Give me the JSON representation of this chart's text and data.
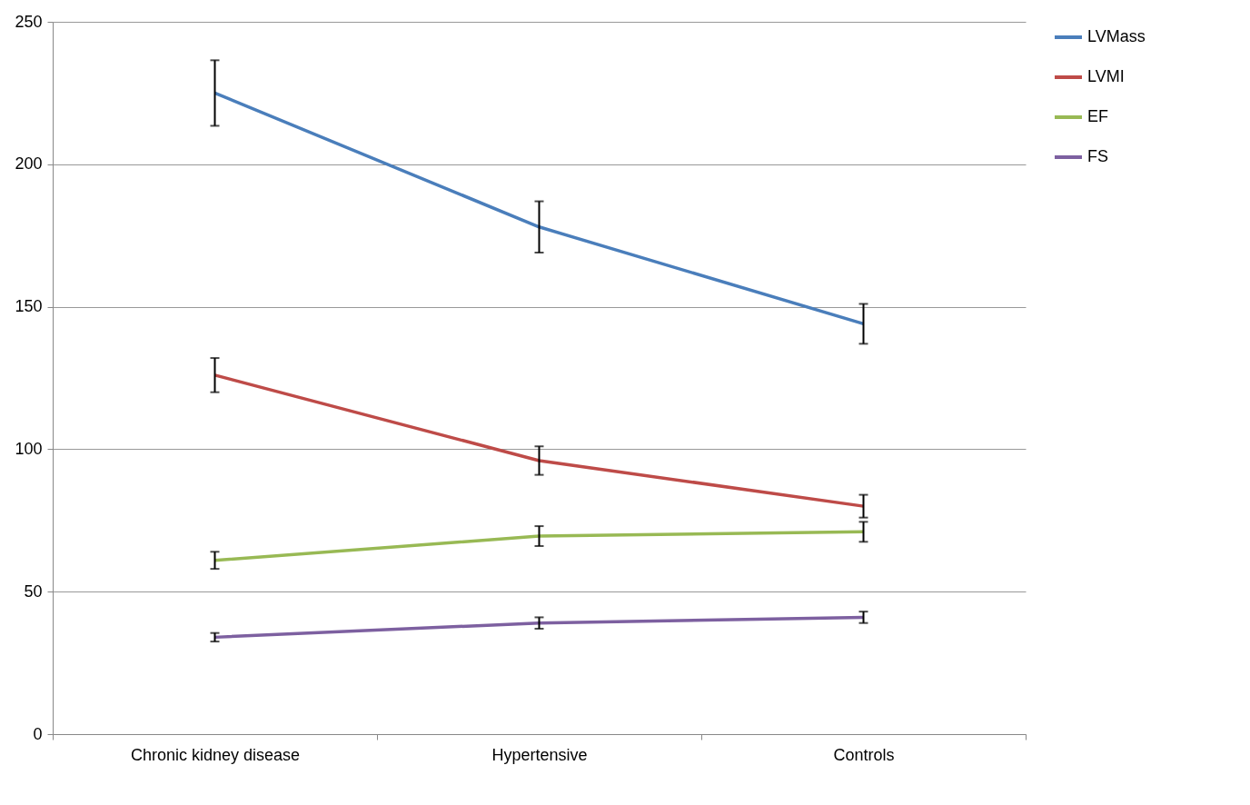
{
  "chart_data": {
    "type": "line",
    "categories": [
      "Chronic kidney disease",
      "Hypertensive",
      "Controls"
    ],
    "series": [
      {
        "name": "LVMass",
        "color": "#4a7ebb",
        "values": [
          225,
          178,
          144
        ],
        "errors": [
          11.5,
          9,
          7
        ]
      },
      {
        "name": "LVMI",
        "color": "#be4b48",
        "values": [
          126,
          96,
          80
        ],
        "errors": [
          6,
          5,
          4
        ]
      },
      {
        "name": "EF",
        "color": "#98b954",
        "values": [
          61,
          69.5,
          71
        ],
        "errors": [
          3,
          3.5,
          3.5
        ]
      },
      {
        "name": "FS",
        "color": "#7d60a0",
        "values": [
          34,
          39,
          41
        ],
        "errors": [
          1.5,
          2,
          2
        ]
      }
    ],
    "ylim": [
      0,
      250
    ],
    "yticks": [
      0,
      50,
      100,
      150,
      200,
      250
    ],
    "grid": "y",
    "legend": "right",
    "marker": "none",
    "line_style": "solid"
  }
}
